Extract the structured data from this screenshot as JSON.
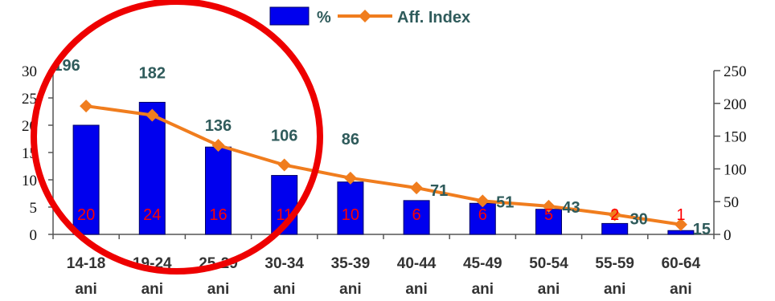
{
  "chart_data": {
    "type": "bar",
    "categories": [
      "14-18 ani",
      "19-24 ani",
      "25-29 ani",
      "30-34 ani",
      "35-39 ani",
      "40-44 ani",
      "45-49 ani",
      "50-54 ani",
      "55-59 ani",
      "60-64 ani"
    ],
    "series": [
      {
        "name": "%",
        "type": "bar",
        "axis": "left",
        "values": [
          20,
          24,
          16,
          11,
          10,
          6,
          6,
          5,
          2,
          1
        ],
        "actual_heights": [
          20,
          24.2,
          16,
          10.8,
          9.6,
          6.2,
          5.7,
          4.6,
          2,
          0.7
        ],
        "labels": [
          "20",
          "24",
          "16",
          "11",
          "10",
          "6",
          "6",
          "5",
          "2",
          "1"
        ]
      },
      {
        "name": "Aff. Index",
        "type": "line",
        "axis": "right",
        "values": [
          196,
          182,
          136,
          106,
          86,
          71,
          51,
          43,
          30,
          15
        ],
        "labels": [
          "196",
          "182",
          "136",
          "106",
          "86",
          "71",
          "51",
          "43",
          "30",
          "15"
        ]
      }
    ],
    "y_left": {
      "min": 0,
      "max": 30,
      "ticks": [
        "0",
        "5",
        "10",
        "15",
        "20",
        "25",
        "30"
      ]
    },
    "y_right": {
      "min": 0,
      "max": 250,
      "ticks": [
        "0",
        "50",
        "100",
        "150",
        "200",
        "250"
      ]
    },
    "legend": {
      "position": "top",
      "entries": [
        "%",
        "Aff. Index"
      ]
    },
    "grid": false,
    "colors": {
      "bar": "#0000ee",
      "line": "#f07d1e",
      "bar_label": "#ff0000",
      "line_label": "#2f5b5b",
      "circle": "#ee0000"
    },
    "annotations": [
      {
        "kind": "ellipse",
        "color": "#ee0000"
      }
    ]
  }
}
